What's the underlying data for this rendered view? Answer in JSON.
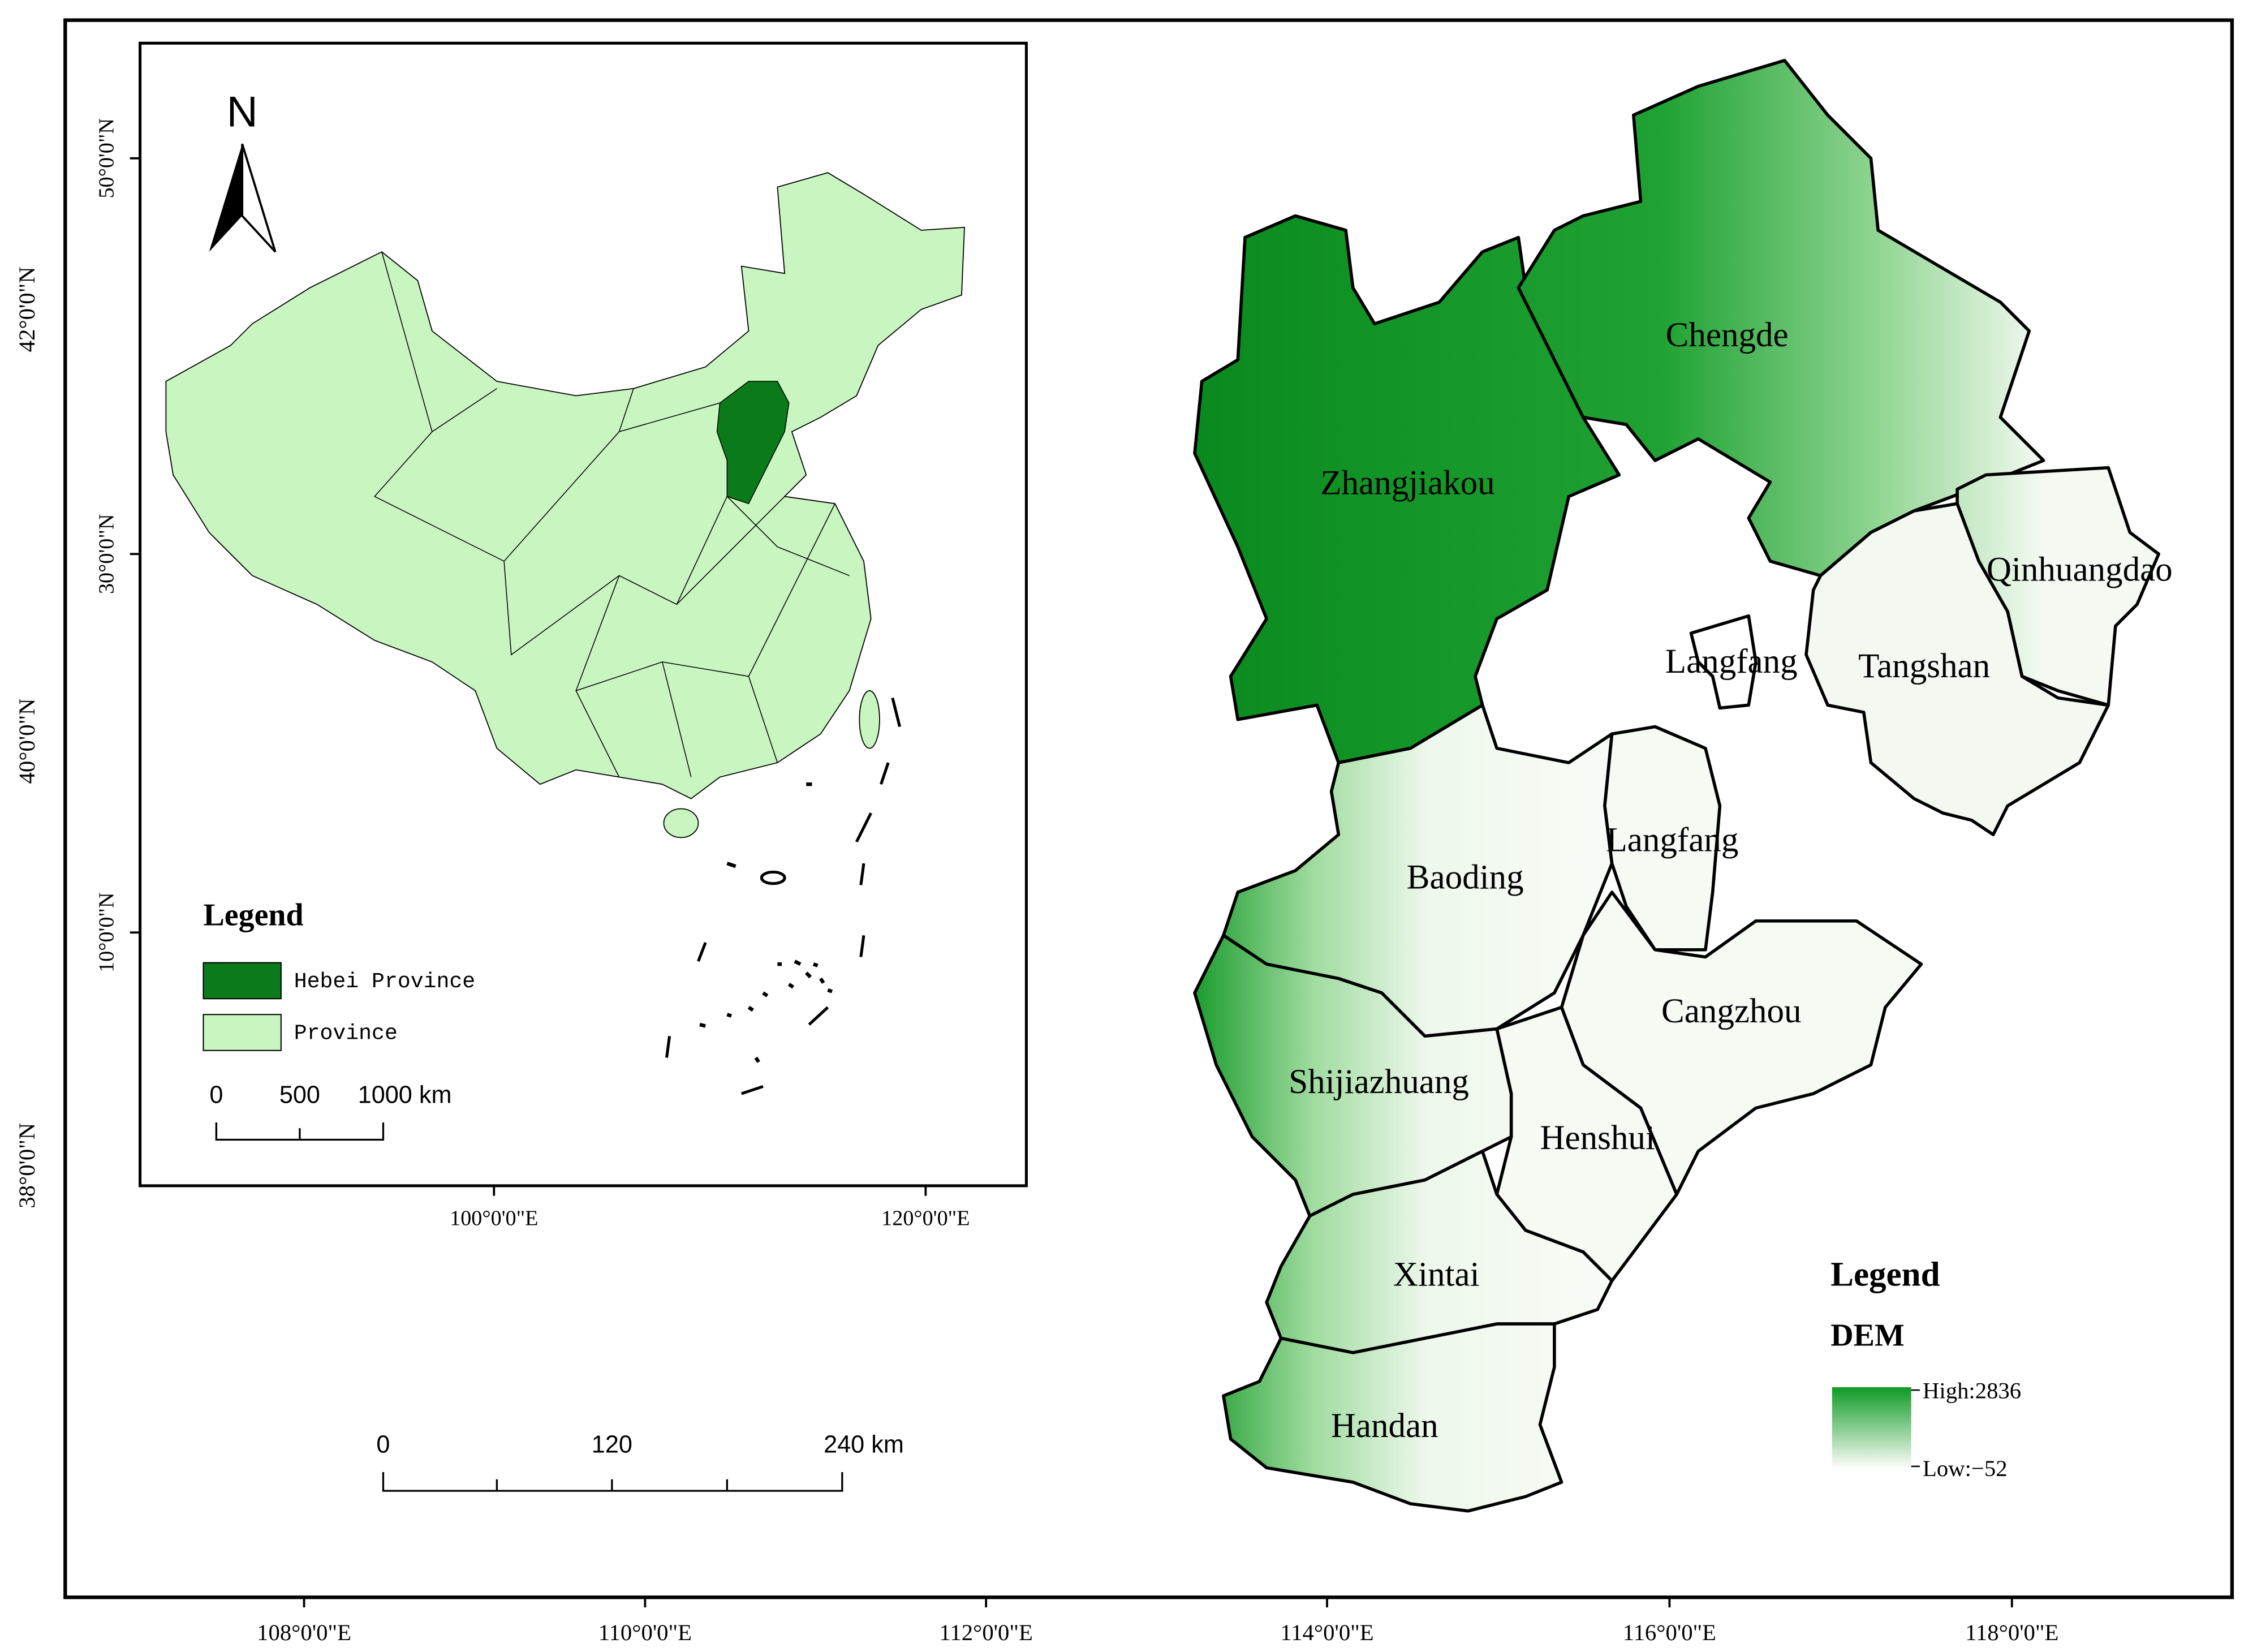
{
  "frame": {
    "lat_labels": [
      "42°0'0\"N",
      "40°0'0\"N",
      "38°0'0\"N"
    ],
    "lon_labels": [
      "108°0'0\"E",
      "110°0'0\"E",
      "112°0'0\"E",
      "114°0'0\"E",
      "116°0'0\"E",
      "118°0'0\"E"
    ]
  },
  "inset_map": {
    "north": "N",
    "lat_labels": [
      "50°0'0\"N",
      "30°0'0\"N",
      "10°0'0\"N"
    ],
    "lon_labels": [
      "100°0'0\"E",
      "120°0'0\"E"
    ],
    "legend": {
      "title": "Legend",
      "items": [
        "Hebei Province",
        "Province"
      ]
    },
    "scale_bar": [
      "0",
      "500",
      "1000 km"
    ]
  },
  "main_map": {
    "cities": [
      "Zhangjiakou",
      "Chengde",
      "Qinhuangdao",
      "Tangshan",
      "Langfang",
      "Langfang",
      "Baoding",
      "Cangzhou",
      "Shijiazhuang",
      "Henshui",
      "Xintai",
      "Handan"
    ],
    "scale_bar": [
      "0",
      "120",
      "240 km"
    ],
    "legend": {
      "title": "Legend",
      "layer": "DEM",
      "high": "High:2836",
      "low": "Low:−52"
    }
  }
}
